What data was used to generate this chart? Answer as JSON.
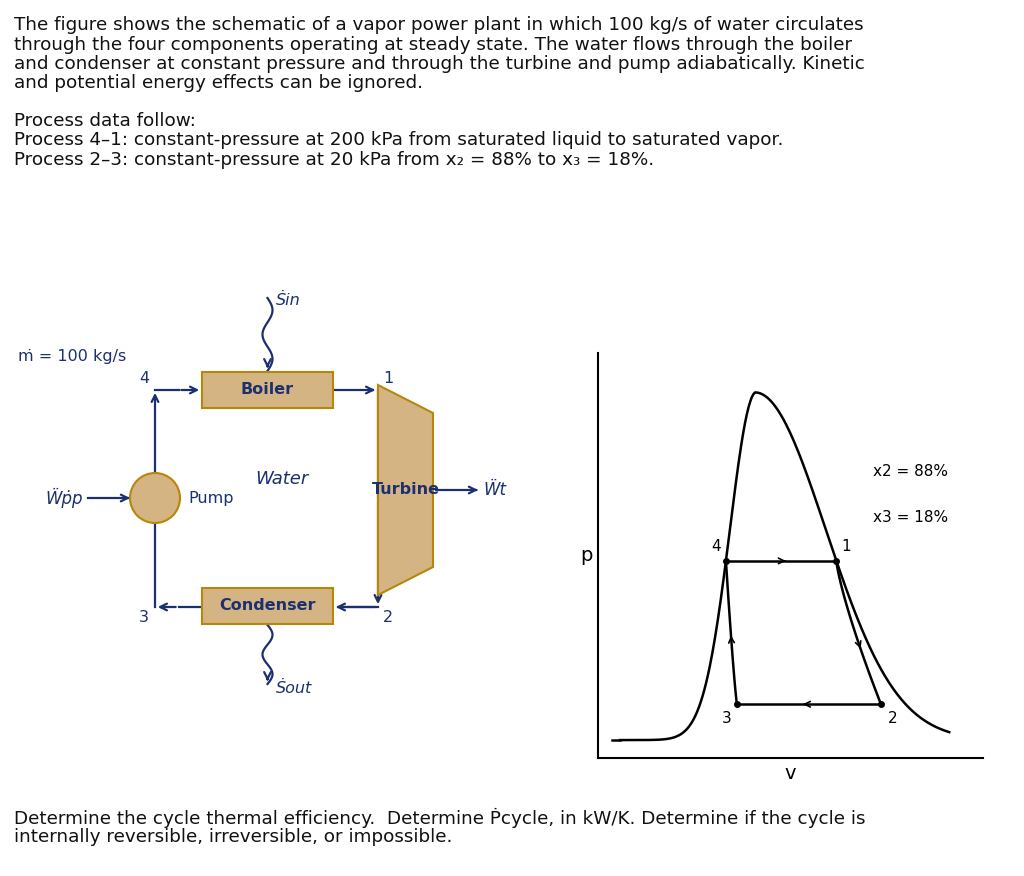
{
  "bg_color": "#ffffff",
  "body_color": "#111111",
  "dark_blue": "#1c3070",
  "tan_edge": "#b8860b",
  "tan_fill": "#d4b483",
  "paragraph1_lines": [
    "The figure shows the schematic of a vapor power plant in which 100 kg/s of water circulates",
    "through the four components operating at steady state. The water flows through the boiler",
    "and condenser at constant pressure and through the turbine and pump adiabatically. Kinetic",
    "and potential energy effects can be ignored."
  ],
  "paragraph2_lines": [
    "Process data follow:",
    "Process 4–1: constant-pressure at 200 kPa from saturated liquid to saturated vapor.",
    "Process 2–3: constant-pressure at 20 kPa from x₂ = 88% to x₃ = 18%."
  ],
  "paragraph3_lines": [
    "Determine the cycle thermal efficiency.  Determine Ṗcycle, in kW/K. Determine if the cycle is",
    "internally reversible, irreversible, or impossible."
  ],
  "mdot_label": "ṁ = 100 kg/s",
  "wp_label": "Ẅṗp",
  "wt_label": "Ẅt",
  "qin_label": "Ṡin",
  "qout_label": "Ṡout",
  "water_label": "Water",
  "boiler_label": "Boiler",
  "condenser_label": "Condenser",
  "pump_label": "Pump",
  "turbine_label": "Turbine",
  "pv_xlabel": "v",
  "pv_ylabel": "p",
  "x2_label": "x2 = 88%",
  "x3_label": "x3 = 18%",
  "font_size_body": 13.2,
  "font_size_label": 11.5,
  "font_size_component": 11.5,
  "lw_flow": 1.6,
  "lw_pv": 1.8
}
